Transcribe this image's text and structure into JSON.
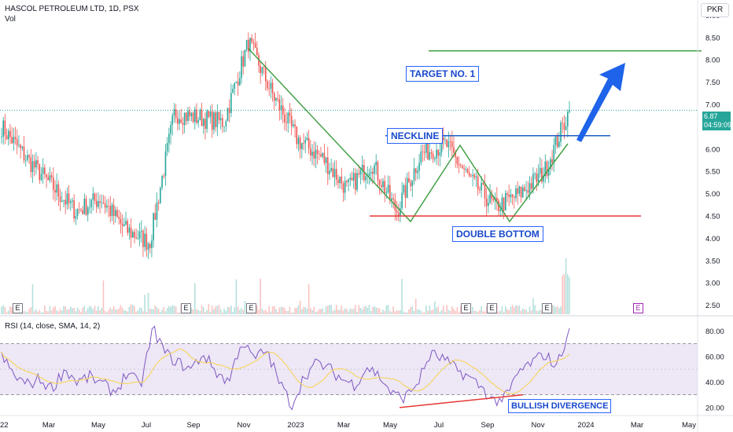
{
  "header": {
    "title": "HASCOL PETROLEUM LTD, 1D, PSX",
    "volume_label": "Vol",
    "rsi_label": "RSI (14, close, SMA, 14, 2)",
    "currency": "PKR"
  },
  "price_tag": {
    "price": "6.87",
    "countdown": "04:59:09"
  },
  "annotations": {
    "target": "TARGET NO. 1",
    "neckline": "NECKLINE",
    "double_bottom": "DOUBLE BOTTOM",
    "bullish_divergence": "BULLISH DIVERGENCE"
  },
  "colors": {
    "up": "#26a69a",
    "down": "#ef5350",
    "pattern_line": "#43a047",
    "neckline": "#1e5bc6",
    "support": "#e53935",
    "arrow": "#1e63e9",
    "rsi_line": "#7e57c2",
    "rsi_ma": "#f9d34a",
    "rsi_band": "#ede7f6"
  },
  "chart_data": [
    {
      "type": "candlestick",
      "title": "HASCOL PETROLEUM LTD, 1D, PSX",
      "ylim": [
        2.3,
        9.2
      ],
      "y_ticks": [
        "2.50",
        "3.00",
        "3.50",
        "4.00",
        "4.50",
        "5.00",
        "5.50",
        "6.00",
        "6.50",
        "7.00",
        "7.50",
        "8.00",
        "8.50",
        "9.00"
      ],
      "x_ticks": [
        "22",
        "Mar",
        "May",
        "Jul",
        "Sep",
        "Nov",
        "2023",
        "Mar",
        "May",
        "Jul",
        "Sep",
        "Nov",
        "2024",
        "Mar",
        "May"
      ],
      "last_price": 6.87,
      "approx_closes": [
        {
          "date": "2022-01",
          "close": 6.5
        },
        {
          "date": "2022-02",
          "close": 5.8
        },
        {
          "date": "2022-03",
          "close": 5.2
        },
        {
          "date": "2022-04",
          "close": 4.6
        },
        {
          "date": "2022-05",
          "close": 4.9
        },
        {
          "date": "2022-06",
          "close": 4.2
        },
        {
          "date": "2022-07",
          "close": 3.9
        },
        {
          "date": "2022-08",
          "close": 6.8
        },
        {
          "date": "2022-09",
          "close": 6.7
        },
        {
          "date": "2022-10",
          "close": 6.6
        },
        {
          "date": "2022-11",
          "close": 8.4
        },
        {
          "date": "2022-12",
          "close": 7.2
        },
        {
          "date": "2023-01",
          "close": 6.2
        },
        {
          "date": "2023-02",
          "close": 5.8
        },
        {
          "date": "2023-03",
          "close": 5.1
        },
        {
          "date": "2023-04",
          "close": 5.7
        },
        {
          "date": "2023-05",
          "close": 4.6
        },
        {
          "date": "2023-06",
          "close": 5.9
        },
        {
          "date": "2023-07",
          "close": 6.1
        },
        {
          "date": "2023-08",
          "close": 5.3
        },
        {
          "date": "2023-09",
          "close": 4.7
        },
        {
          "date": "2023-10",
          "close": 5.0
        },
        {
          "date": "2023-11",
          "close": 5.5
        },
        {
          "date": "2023-12",
          "close": 6.87
        }
      ],
      "neckline": 6.3,
      "double_bottom_level": 4.5,
      "target_level": 8.2
    },
    {
      "type": "line",
      "title": "RSI (14, close, SMA, 14, 2)",
      "ylim": [
        15,
        90
      ],
      "y_ticks": [
        "20.00",
        "40.00",
        "60.00",
        "80.00"
      ],
      "upper_band": 70,
      "lower_band": 30,
      "series": [
        {
          "name": "RSI",
          "values": [
            60,
            45,
            38,
            42,
            35,
            50,
            40,
            44,
            38,
            32,
            48,
            36,
            82,
            62,
            55,
            50,
            62,
            48,
            40,
            72,
            58,
            65,
            40,
            22,
            45,
            55,
            50,
            42,
            38,
            52,
            44,
            30,
            28,
            40,
            62,
            58,
            50,
            44,
            36,
            25,
            28,
            48,
            55,
            62,
            52,
            82
          ]
        }
      ]
    }
  ],
  "earnings_badges": [
    "E",
    "E",
    "E",
    "E",
    "E",
    "E",
    "E"
  ]
}
